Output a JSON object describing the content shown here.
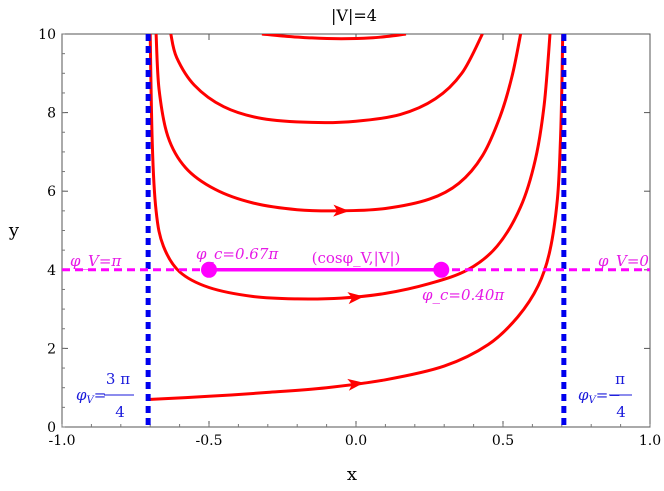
{
  "chart_data": {
    "type": "line",
    "title": "|V|=4",
    "xlabel": "x",
    "ylabel": "y",
    "xlim": [
      -1.0,
      1.0
    ],
    "ylim": [
      0,
      10
    ],
    "x_ticks": [
      -1.0,
      -0.5,
      0.0,
      0.5,
      1.0
    ],
    "x_tick_labels": [
      "-1.0",
      "-0.5",
      "0.0",
      "0.5",
      "1.0"
    ],
    "y_ticks": [
      0,
      2,
      4,
      6,
      8,
      10
    ],
    "y_tick_labels": [
      "0",
      "2",
      "4",
      "6",
      "8",
      "10"
    ],
    "grid": false,
    "colors": {
      "curves": "#ff0000",
      "asymptotes": "#0000ee",
      "level": "#ff00ff"
    },
    "trajectories": [
      {
        "points": [
          [
            -0.707,
            0.7
          ],
          [
            -0.5,
            0.78
          ],
          [
            -0.3,
            0.88
          ],
          [
            -0.1,
            1.0
          ],
          [
            0.1,
            1.2
          ],
          [
            0.3,
            1.55
          ],
          [
            0.45,
            2.1
          ],
          [
            0.55,
            2.8
          ],
          [
            0.62,
            3.6
          ],
          [
            0.66,
            4.5
          ],
          [
            0.685,
            5.8
          ],
          [
            0.695,
            7.2
          ],
          [
            0.7,
            8.6
          ],
          [
            0.703,
            10.0
          ]
        ],
        "arrow_at": [
          0.0,
          1.1
        ]
      },
      {
        "points": [
          [
            -0.7,
            10.0
          ],
          [
            -0.693,
            7.2
          ],
          [
            -0.68,
            5.5
          ],
          [
            -0.655,
            4.6
          ],
          [
            -0.6,
            3.95
          ],
          [
            -0.5,
            3.55
          ],
          [
            -0.35,
            3.32
          ],
          [
            -0.2,
            3.26
          ],
          [
            -0.05,
            3.28
          ],
          [
            0.1,
            3.4
          ],
          [
            0.25,
            3.65
          ],
          [
            0.38,
            4.0
          ],
          [
            0.48,
            4.6
          ],
          [
            0.56,
            5.6
          ],
          [
            0.61,
            6.8
          ],
          [
            0.64,
            8.2
          ],
          [
            0.66,
            10.0
          ]
        ],
        "arrow_at": [
          0.0,
          3.3
        ]
      },
      {
        "points": [
          [
            -0.68,
            10.0
          ],
          [
            -0.67,
            8.6
          ],
          [
            -0.64,
            7.4
          ],
          [
            -0.58,
            6.6
          ],
          [
            -0.48,
            6.05
          ],
          [
            -0.35,
            5.7
          ],
          [
            -0.2,
            5.53
          ],
          [
            -0.05,
            5.5
          ],
          [
            0.1,
            5.56
          ],
          [
            0.25,
            5.8
          ],
          [
            0.35,
            6.2
          ],
          [
            0.43,
            6.9
          ],
          [
            0.49,
            7.9
          ],
          [
            0.53,
            8.9
          ],
          [
            0.56,
            10.0
          ]
        ],
        "arrow_at": [
          -0.05,
          5.5
        ]
      },
      {
        "points": [
          [
            -0.63,
            10.0
          ],
          [
            -0.61,
            9.4
          ],
          [
            -0.55,
            8.7
          ],
          [
            -0.45,
            8.15
          ],
          [
            -0.32,
            7.85
          ],
          [
            -0.15,
            7.75
          ],
          [
            0.0,
            7.78
          ],
          [
            0.15,
            7.95
          ],
          [
            0.27,
            8.35
          ],
          [
            0.36,
            9.0
          ],
          [
            0.43,
            10.0
          ]
        ],
        "arrow_at": null
      },
      {
        "points": [
          [
            -0.32,
            10.0
          ],
          [
            -0.25,
            9.95
          ],
          [
            -0.15,
            9.9
          ],
          [
            -0.05,
            9.88
          ],
          [
            0.05,
            9.9
          ],
          [
            0.12,
            9.95
          ],
          [
            0.17,
            10.0
          ]
        ],
        "arrow_at": null
      }
    ],
    "vertical_lines": [
      -0.707,
      0.707
    ],
    "horizontal_line_y": 4,
    "segment": {
      "x": [
        -0.5,
        0.29
      ],
      "y": 4,
      "label": "(cosφ_V,|V|)"
    },
    "points": [
      {
        "x": -0.5,
        "y": 4,
        "label": "φ_c=0.67π"
      },
      {
        "x": 0.29,
        "y": 4,
        "label": "φ_c=0.40π"
      }
    ],
    "annotations": {
      "phi_left": "φ_V=π",
      "phi_right": "φ_V=0",
      "phi_bottom_left_num": "3 π",
      "phi_bottom_left_den": "4",
      "phi_bottom_right_num": "π",
      "phi_bottom_right_den": "4"
    }
  }
}
